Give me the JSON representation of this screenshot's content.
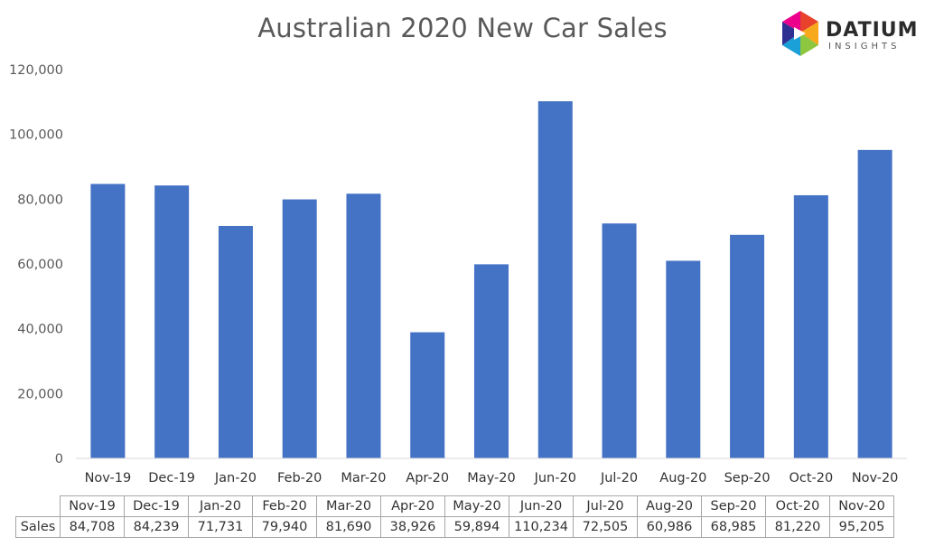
{
  "chart_data": {
    "type": "bar",
    "title": "Australian 2020 New Car Sales",
    "xlabel": "",
    "ylabel": "",
    "ylim": [
      0,
      120000
    ],
    "y_ticks": [
      "0",
      "20,000",
      "40,000",
      "60,000",
      "80,000",
      "100,000",
      "120,000"
    ],
    "y_tick_values": [
      0,
      20000,
      40000,
      60000,
      80000,
      100000,
      120000
    ],
    "categories": [
      "Nov-19",
      "Dec-19",
      "Jan-20",
      "Feb-20",
      "Mar-20",
      "Apr-20",
      "May-20",
      "Jun-20",
      "Jul-20",
      "Aug-20",
      "Sep-20",
      "Oct-20",
      "Nov-20"
    ],
    "series": [
      {
        "name": "Sales",
        "values": [
          84708,
          84239,
          71731,
          79940,
          81690,
          38926,
          59894,
          110234,
          72505,
          60986,
          68985,
          81220,
          95205
        ],
        "value_labels": [
          "84,708",
          "84,239",
          "71,731",
          "79,940",
          "81,690",
          "38,926",
          "59,894",
          "110,234",
          "72,505",
          "60,986",
          "68,985",
          "81,220",
          "95,205"
        ],
        "color": "#4472C4"
      }
    ],
    "grid": false,
    "legend": "none",
    "data_table": true
  },
  "logo": {
    "name": "DATIUM",
    "tagline": "INSIGHTS",
    "colors": [
      "#E8412C",
      "#F7A81B",
      "#8DC63F",
      "#1BA0D8",
      "#2E3192",
      "#EC008C"
    ]
  }
}
